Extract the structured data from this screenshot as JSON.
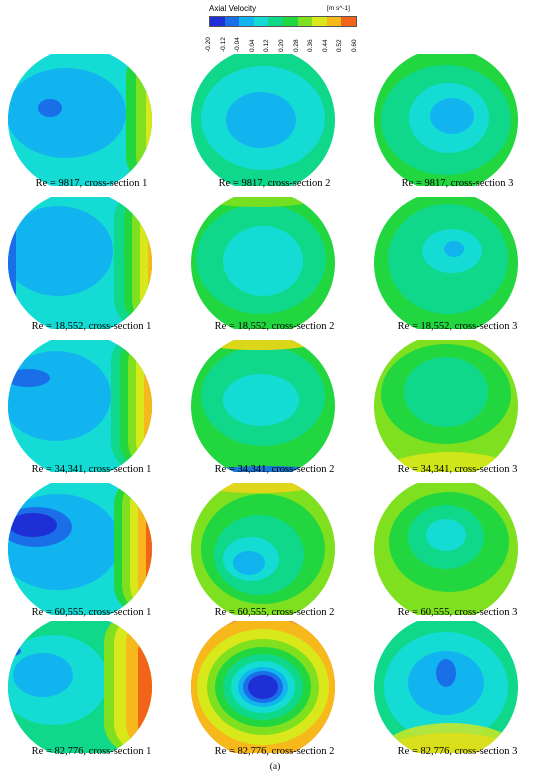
{
  "legend": {
    "title": "Axial Velocity",
    "unit": "[m s^-1]",
    "ticks": [
      "-0.20",
      "-0.12",
      "-0.04",
      "0.04",
      "0.12",
      "0.20",
      "0.28",
      "0.36",
      "0.44",
      "0.52",
      "0.60"
    ],
    "colors": [
      "#1f2fd6",
      "#1a6ee8",
      "#12b4f0",
      "#14dcd4",
      "#10d88a",
      "#22d640",
      "#7ee01e",
      "#d8e81a",
      "#f6b81a",
      "#f26418"
    ]
  },
  "plots": [
    {
      "caption": "Re = 9817, cross-section 1"
    },
    {
      "caption": "Re = 9817, cross-section 2"
    },
    {
      "caption": "Re = 9817, cross-section 3"
    },
    {
      "caption": "Re = 18,552, cross-section 1"
    },
    {
      "caption": "Re = 18,552, cross-section 2"
    },
    {
      "caption": "Re = 18,552, cross-section 3"
    },
    {
      "caption": "Re = 34,341, cross-section 1"
    },
    {
      "caption": "Re = 34,341, cross-section 2"
    },
    {
      "caption": "Re = 34,341, cross-section 3"
    },
    {
      "caption": "Re = 60,555, cross-section 1"
    },
    {
      "caption": "Re = 60,555, cross-section 2"
    },
    {
      "caption": "Re = 60,555, cross-section 3"
    },
    {
      "caption": "Re = 82,776, cross-section 1"
    },
    {
      "caption": "Re = 82,776, cross-section 2"
    },
    {
      "caption": "Re = 82,776, cross-section 3"
    }
  ],
  "figure_label": "(a)"
}
